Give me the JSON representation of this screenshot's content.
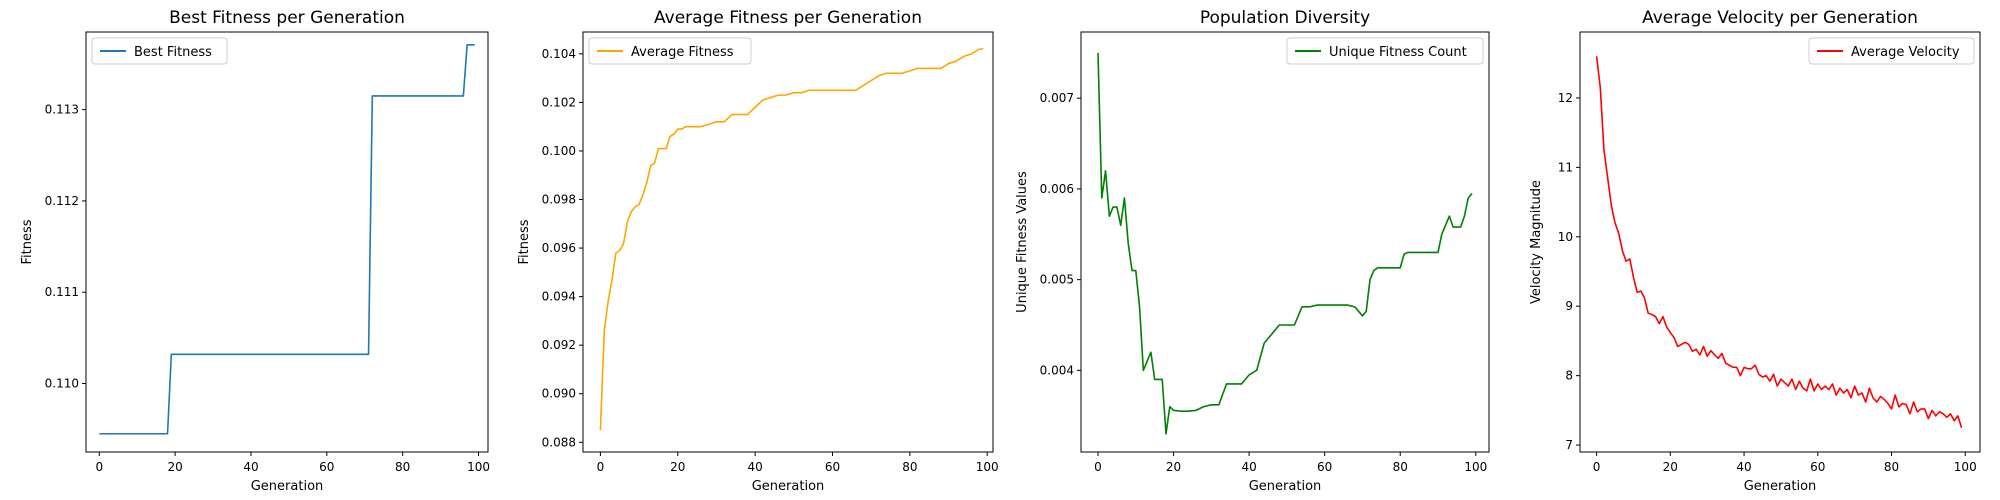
{
  "chart_data": [
    {
      "type": "line",
      "title": "Best Fitness per Generation",
      "xlabel": "Generation",
      "ylabel": "Fitness",
      "xlim": [
        -3.5,
        102.5
      ],
      "ylim": [
        0.10925,
        0.11385
      ],
      "xticks": [
        0,
        20,
        40,
        60,
        80,
        100
      ],
      "xtick_labels": [
        "0",
        "20",
        "40",
        "60",
        "80",
        "100"
      ],
      "yticks": [
        0.11,
        0.111,
        0.112,
        0.113
      ],
      "ytick_labels": [
        "0.110",
        "0.111",
        "0.112",
        "0.113"
      ],
      "legend_position": "upper-left",
      "grid": false,
      "series": [
        {
          "name": "Best Fitness",
          "color": "#1f77b4",
          "x": [
            0,
            18,
            19,
            71,
            72,
            96,
            97,
            99
          ],
          "y": [
            0.10945,
            0.10945,
            0.11032,
            0.11032,
            0.11315,
            0.11315,
            0.11371,
            0.11371
          ]
        }
      ]
    },
    {
      "type": "line",
      "title": "Average Fitness per Generation",
      "xlabel": "Generation",
      "ylabel": "Fitness",
      "xlim": [
        -4.5,
        101.5
      ],
      "ylim": [
        0.0876,
        0.1049
      ],
      "xticks": [
        0,
        20,
        40,
        60,
        80,
        100
      ],
      "xtick_labels": [
        "0",
        "20",
        "40",
        "60",
        "80",
        "100"
      ],
      "yticks": [
        0.088,
        0.09,
        0.092,
        0.094,
        0.096,
        0.098,
        0.1,
        0.102,
        0.104
      ],
      "ytick_labels": [
        "0.088",
        "0.090",
        "0.092",
        "0.094",
        "0.096",
        "0.098",
        "0.100",
        "0.102",
        "0.104"
      ],
      "legend_position": "upper-left",
      "grid": false,
      "series": [
        {
          "name": "Average Fitness",
          "color": "#ffa500",
          "x": [
            0,
            1,
            2,
            3,
            4,
            5,
            6,
            7,
            8,
            9,
            10,
            11,
            12,
            13,
            14,
            15,
            16,
            17,
            18,
            19,
            20,
            21,
            22,
            24,
            26,
            28,
            30,
            32,
            34,
            36,
            38,
            40,
            42,
            44,
            46,
            48,
            50,
            52,
            54,
            56,
            58,
            60,
            62,
            64,
            66,
            68,
            70,
            72,
            74,
            76,
            78,
            80,
            82,
            84,
            86,
            88,
            90,
            92,
            94,
            96,
            98,
            99
          ],
          "y": [
            0.0885,
            0.0926,
            0.0938,
            0.0947,
            0.0958,
            0.0959,
            0.0962,
            0.0971,
            0.0975,
            0.0977,
            0.0978,
            0.0982,
            0.0987,
            0.0994,
            0.0995,
            0.1001,
            0.1001,
            0.1001,
            0.1006,
            0.1007,
            0.1009,
            0.1009,
            0.101,
            0.101,
            0.101,
            0.1011,
            0.1012,
            0.1012,
            0.1015,
            0.1015,
            0.1015,
            0.1018,
            0.1021,
            0.1022,
            0.1023,
            0.1023,
            0.1024,
            0.1024,
            0.1025,
            0.1025,
            0.1025,
            0.1025,
            0.1025,
            0.1025,
            0.1025,
            0.1027,
            0.1029,
            0.1031,
            0.1032,
            0.1032,
            0.1032,
            0.1033,
            0.1034,
            0.1034,
            0.1034,
            0.1034,
            0.1036,
            0.1037,
            0.1039,
            0.104,
            0.1042,
            0.1042
          ]
        }
      ]
    },
    {
      "type": "line",
      "title": "Population Diversity",
      "xlabel": "Generation",
      "ylabel": "Unique Fitness Values",
      "xlim": [
        -4.5,
        103.5
      ],
      "ylim": [
        0.0031,
        0.00773
      ],
      "xticks": [
        0,
        20,
        40,
        60,
        80,
        100
      ],
      "xtick_labels": [
        "0",
        "20",
        "40",
        "60",
        "80",
        "100"
      ],
      "yticks": [
        0.004,
        0.005,
        0.006,
        0.007
      ],
      "ytick_labels": [
        "0.004",
        "0.005",
        "0.006",
        "0.007"
      ],
      "legend_position": "upper-right",
      "grid": false,
      "series": [
        {
          "name": "Unique Fitness Count",
          "color": "#008000",
          "x": [
            0,
            1,
            2,
            3,
            4,
            5,
            6,
            7,
            8,
            9,
            10,
            11,
            12,
            13,
            14,
            15,
            16,
            17,
            18,
            19,
            20,
            22,
            24,
            26,
            28,
            30,
            32,
            34,
            36,
            38,
            40,
            42,
            44,
            46,
            48,
            50,
            52,
            54,
            56,
            58,
            60,
            62,
            64,
            66,
            68,
            70,
            71,
            72,
            73,
            74,
            76,
            78,
            80,
            81,
            82,
            84,
            86,
            88,
            90,
            91,
            92,
            93,
            94,
            95,
            96,
            97,
            98,
            99
          ],
          "y": [
            0.0075,
            0.0059,
            0.0062,
            0.0057,
            0.0058,
            0.0058,
            0.0056,
            0.0059,
            0.0054,
            0.0051,
            0.0051,
            0.0047,
            0.004,
            0.0041,
            0.0042,
            0.0039,
            0.0039,
            0.0039,
            0.0033,
            0.0036,
            0.00356,
            0.00355,
            0.00355,
            0.00356,
            0.0036,
            0.00362,
            0.00362,
            0.00385,
            0.00385,
            0.00385,
            0.00395,
            0.004,
            0.0043,
            0.0044,
            0.0045,
            0.0045,
            0.0045,
            0.0047,
            0.0047,
            0.00472,
            0.00472,
            0.00472,
            0.00472,
            0.00472,
            0.0047,
            0.0046,
            0.00465,
            0.005,
            0.0051,
            0.00513,
            0.00513,
            0.00513,
            0.00513,
            0.00528,
            0.0053,
            0.0053,
            0.0053,
            0.0053,
            0.0053,
            0.0055,
            0.0056,
            0.0057,
            0.00558,
            0.00558,
            0.00558,
            0.0057,
            0.0059,
            0.00595
          ]
        }
      ]
    },
    {
      "type": "line",
      "title": "Average Velocity per Generation",
      "xlabel": "Generation",
      "ylabel": "Velocity Magnitude",
      "xlim": [
        -4.5,
        104
      ],
      "ylim": [
        6.9,
        12.95
      ],
      "xticks": [
        0,
        20,
        40,
        60,
        80,
        100
      ],
      "xtick_labels": [
        "0",
        "20",
        "40",
        "60",
        "80",
        "100"
      ],
      "yticks": [
        7,
        8,
        9,
        10,
        11,
        12
      ],
      "ytick_labels": [
        "7",
        "8",
        "9",
        "10",
        "11",
        "12"
      ],
      "legend_position": "upper-right",
      "grid": false,
      "series": [
        {
          "name": "Average Velocity",
          "color": "#ff0000",
          "x": [
            0,
            1,
            2,
            3,
            4,
            5,
            6,
            7,
            8,
            9,
            10,
            11,
            12,
            13,
            14,
            15,
            16,
            17,
            18,
            19,
            20,
            21,
            22,
            23,
            24,
            25,
            26,
            27,
            28,
            29,
            30,
            31,
            32,
            33,
            34,
            35,
            36,
            37,
            38,
            39,
            40,
            41,
            42,
            43,
            44,
            45,
            46,
            47,
            48,
            49,
            50,
            51,
            52,
            53,
            54,
            55,
            56,
            57,
            58,
            59,
            60,
            61,
            62,
            63,
            64,
            65,
            66,
            67,
            68,
            69,
            70,
            71,
            72,
            73,
            74,
            75,
            76,
            77,
            78,
            79,
            80,
            81,
            82,
            83,
            84,
            85,
            86,
            87,
            88,
            89,
            90,
            91,
            92,
            93,
            94,
            95,
            96,
            97,
            98,
            99
          ],
          "y": [
            12.6,
            12.15,
            11.25,
            10.85,
            10.45,
            10.2,
            10.05,
            9.8,
            9.65,
            9.68,
            9.42,
            9.2,
            9.22,
            9.12,
            8.9,
            8.88,
            8.85,
            8.75,
            8.85,
            8.7,
            8.62,
            8.55,
            8.42,
            8.45,
            8.48,
            8.45,
            8.35,
            8.38,
            8.3,
            8.42,
            8.28,
            8.36,
            8.3,
            8.25,
            8.32,
            8.18,
            8.15,
            8.12,
            8.12,
            8.0,
            8.12,
            8.1,
            8.1,
            8.15,
            8.02,
            7.98,
            8.0,
            7.92,
            8.02,
            7.85,
            7.95,
            7.9,
            7.85,
            7.95,
            7.8,
            7.92,
            7.82,
            7.78,
            7.95,
            7.78,
            7.88,
            7.8,
            7.85,
            7.8,
            7.88,
            7.72,
            7.82,
            7.75,
            7.8,
            7.68,
            7.85,
            7.72,
            7.75,
            7.62,
            7.82,
            7.68,
            7.62,
            7.7,
            7.66,
            7.6,
            7.52,
            7.72,
            7.55,
            7.6,
            7.58,
            7.45,
            7.62,
            7.48,
            7.52,
            7.52,
            7.38,
            7.5,
            7.42,
            7.48,
            7.45,
            7.4,
            7.45,
            7.35,
            7.42,
            7.25
          ]
        }
      ]
    }
  ]
}
